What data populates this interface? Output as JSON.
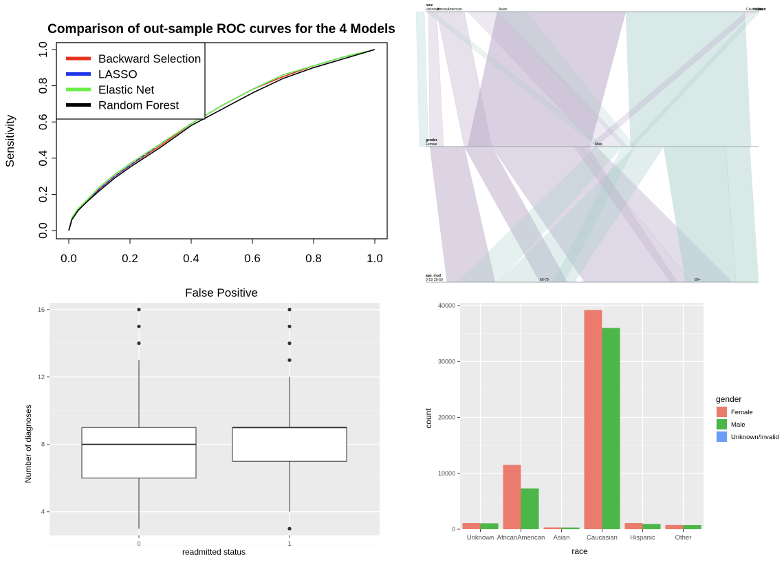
{
  "chart_data": [
    {
      "type": "line",
      "title": "Comparison of out-sample ROC curves for the 4 Models",
      "xlabel": "False Positive",
      "ylabel": "Sensitivity",
      "xlim": [
        0,
        1
      ],
      "ylim": [
        0,
        1
      ],
      "xticks": [
        "0.0",
        "0.2",
        "0.4",
        "0.6",
        "0.8",
        "1.0"
      ],
      "yticks": [
        "0.0",
        "0.2",
        "0.4",
        "0.6",
        "0.8",
        "1.0"
      ],
      "legend_position": "top-left",
      "x": [
        0,
        0.01,
        0.03,
        0.06,
        0.1,
        0.15,
        0.2,
        0.3,
        0.4,
        0.5,
        0.6,
        0.7,
        0.8,
        0.9,
        1.0
      ],
      "series": [
        {
          "name": "Backward Selection",
          "color": "#e8321e",
          "values": [
            0,
            0.06,
            0.11,
            0.16,
            0.23,
            0.3,
            0.36,
            0.47,
            0.59,
            0.69,
            0.78,
            0.85,
            0.91,
            0.96,
            1.0
          ]
        },
        {
          "name": "LASSO",
          "color": "#2035e8",
          "values": [
            0,
            0.06,
            0.11,
            0.16,
            0.23,
            0.3,
            0.36,
            0.48,
            0.59,
            0.69,
            0.78,
            0.86,
            0.91,
            0.96,
            1.0
          ]
        },
        {
          "name": "Elastic Net",
          "color": "#69ee48",
          "values": [
            0,
            0.07,
            0.12,
            0.17,
            0.24,
            0.31,
            0.37,
            0.48,
            0.59,
            0.69,
            0.78,
            0.86,
            0.91,
            0.96,
            1.0
          ]
        },
        {
          "name": "Random Forest",
          "color": "#000000",
          "values": [
            0,
            0.06,
            0.11,
            0.16,
            0.22,
            0.29,
            0.35,
            0.46,
            0.58,
            0.67,
            0.76,
            0.84,
            0.9,
            0.95,
            1.0
          ]
        }
      ]
    },
    {
      "type": "alluvial",
      "axes": [
        {
          "title": "race",
          "categories": [
            "Unknown",
            "AfricanAmerican",
            "Asian",
            "Caucasian",
            "Hispanic",
            "Other"
          ]
        },
        {
          "title": "gender",
          "categories": [
            "Female",
            "Male"
          ]
        },
        {
          "title": "age_mod",
          "categories": [
            "0-19",
            "20-59",
            "60-79",
            "80+"
          ]
        }
      ],
      "colors": {
        "female": "#b9a9c8",
        "male": "#aacfcb"
      }
    },
    {
      "type": "box",
      "xlabel": "readmitted status",
      "ylabel": "Number of diagnoses",
      "categories": [
        "0",
        "1"
      ],
      "ylim": [
        2.6,
        16.4
      ],
      "yticks": [
        4,
        8,
        12,
        16
      ],
      "boxes": [
        {
          "category": "0",
          "q1": 6,
          "median": 8,
          "q3": 9,
          "whisker_low": 3,
          "whisker_high": 13,
          "outliers": [
            14,
            15,
            16
          ]
        },
        {
          "category": "1",
          "q1": 7,
          "median": 9,
          "q3": 9,
          "whisker_low": 4,
          "whisker_high": 12,
          "outliers": [
            3,
            13,
            14,
            15,
            16
          ]
        }
      ]
    },
    {
      "type": "bar",
      "xlabel": "race",
      "ylabel": "count",
      "categories": [
        "Unknown",
        "AfricanAmerican",
        "Asian",
        "Caucasian",
        "Hispanic",
        "Other"
      ],
      "ylim": [
        0,
        40500
      ],
      "yticks": [
        0,
        10000,
        20000,
        30000,
        40000
      ],
      "legend_title": "gender",
      "legend_position": "right",
      "series": [
        {
          "name": "Female",
          "color": "#ea7b6d",
          "values": [
            1100,
            11500,
            320,
            39200,
            1100,
            760
          ]
        },
        {
          "name": "Male",
          "color": "#4db648",
          "values": [
            1060,
            7300,
            300,
            36000,
            950,
            740
          ]
        },
        {
          "name": "Unknown/Invalid",
          "color": "#6d9cf8",
          "values": [
            0,
            0,
            0,
            0,
            0,
            0
          ]
        }
      ]
    }
  ]
}
